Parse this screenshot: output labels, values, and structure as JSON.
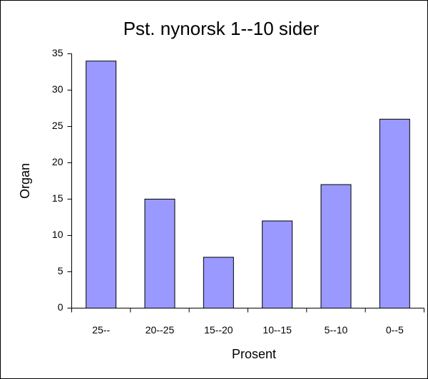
{
  "chart_data": {
    "type": "bar",
    "title": "Pst. nynorsk 1--10 sider",
    "x_label": "Prosent",
    "y_label": "Organ",
    "categories": [
      "25--",
      "20--25",
      "15--20",
      "10--15",
      "5--10",
      "0--5"
    ],
    "values": [
      34,
      15,
      7,
      12,
      17,
      26
    ],
    "color": "#9999ff",
    "ylim": [
      0,
      35
    ],
    "yticks": [
      0,
      5,
      10,
      15,
      20,
      25,
      30,
      35
    ],
    "grid": false
  }
}
